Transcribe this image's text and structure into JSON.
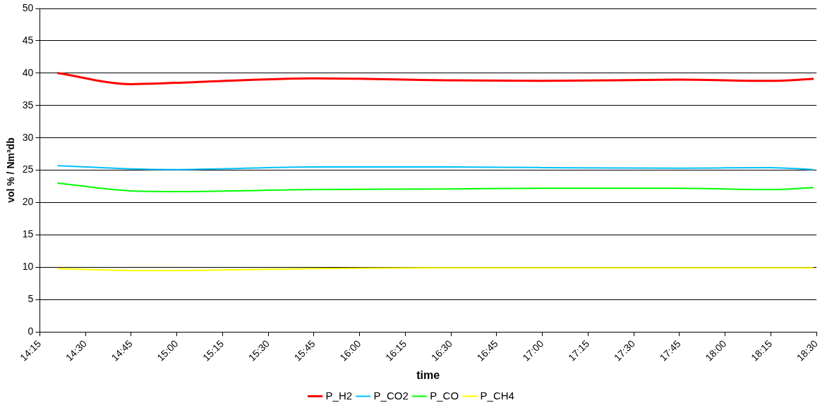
{
  "chart_data": {
    "type": "line",
    "xlabel": "time",
    "ylabel": "vol % / Nm³db",
    "xlim": [
      14.25,
      18.5
    ],
    "xticks": [
      {
        "value": 14.25,
        "label": "14:15"
      },
      {
        "value": 14.5,
        "label": "14:30"
      },
      {
        "value": 14.75,
        "label": "14:45"
      },
      {
        "value": 15,
        "label": "15:00"
      },
      {
        "value": 15.25,
        "label": "15:15"
      },
      {
        "value": 15.5,
        "label": "15:30"
      },
      {
        "value": 15.75,
        "label": "15:45"
      },
      {
        "value": 16,
        "label": "16:00"
      },
      {
        "value": 16.25,
        "label": "16:15"
      },
      {
        "value": 16.5,
        "label": "16:30"
      },
      {
        "value": 16.75,
        "label": "16:45"
      },
      {
        "value": 17,
        "label": "17:00"
      },
      {
        "value": 17.25,
        "label": "17:15"
      },
      {
        "value": 17.5,
        "label": "17:30"
      },
      {
        "value": 17.75,
        "label": "17:45"
      },
      {
        "value": 18,
        "label": "18:00"
      },
      {
        "value": 18.25,
        "label": "18:15"
      },
      {
        "value": 18.5,
        "label": "18:30"
      }
    ],
    "ylim": [
      0,
      50
    ],
    "yticks": [
      0,
      5,
      10,
      15,
      20,
      25,
      30,
      35,
      40,
      45,
      50
    ],
    "grid": "y",
    "legend": "bottom",
    "marker": "none",
    "line_style": "solid",
    "x": [
      14.35,
      14.75,
      15,
      15.75,
      16.5,
      17,
      17.75,
      18.25,
      18.48
    ],
    "series": [
      {
        "name": "P_H2",
        "color": "#ff0000",
        "values": [
          40,
          38.3,
          38.5,
          39.2,
          38.9,
          38.8,
          39,
          38.8,
          39.1
        ]
      },
      {
        "name": "P_CO2",
        "color": "#00c0ff",
        "values": [
          25.7,
          25.2,
          25.1,
          25.5,
          25.5,
          25.4,
          25.3,
          25.4,
          25.1
        ]
      },
      {
        "name": "P_CO",
        "color": "#00ff00",
        "values": [
          23,
          21.8,
          21.7,
          22,
          22.1,
          22.2,
          22.2,
          22,
          22.3
        ]
      },
      {
        "name": "P_CH4",
        "color": "#ffff00",
        "values": [
          9.8,
          9.5,
          9.5,
          9.8,
          9.9,
          9.9,
          9.9,
          9.9,
          9.9
        ]
      }
    ]
  }
}
